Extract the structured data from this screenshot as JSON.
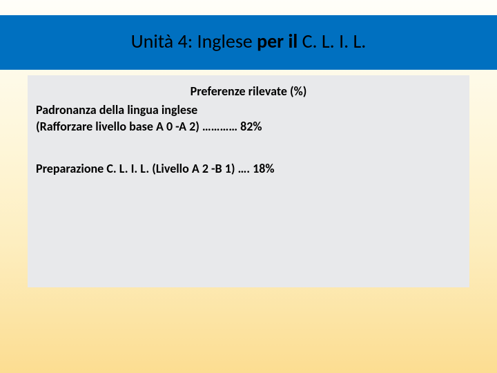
{
  "title": {
    "prefix": "Unità 4: Inglese ",
    "bold": "per il",
    "suffix": " C. L. I. L."
  },
  "content": {
    "subtitle": "Preferenze rilevate (%)",
    "item1_line1": "Padronanza della lingua inglese",
    "item1_line2": "(Rafforzare livello base A 0 -A 2) ………… 82%",
    "item2": "Preparazione C. L. I. L. (Livello A 2 -B 1) …. 18%"
  },
  "colors": {
    "title_bar_bg": "#0070c0",
    "content_box_bg": "#e8e9eb",
    "text": "#000000"
  }
}
